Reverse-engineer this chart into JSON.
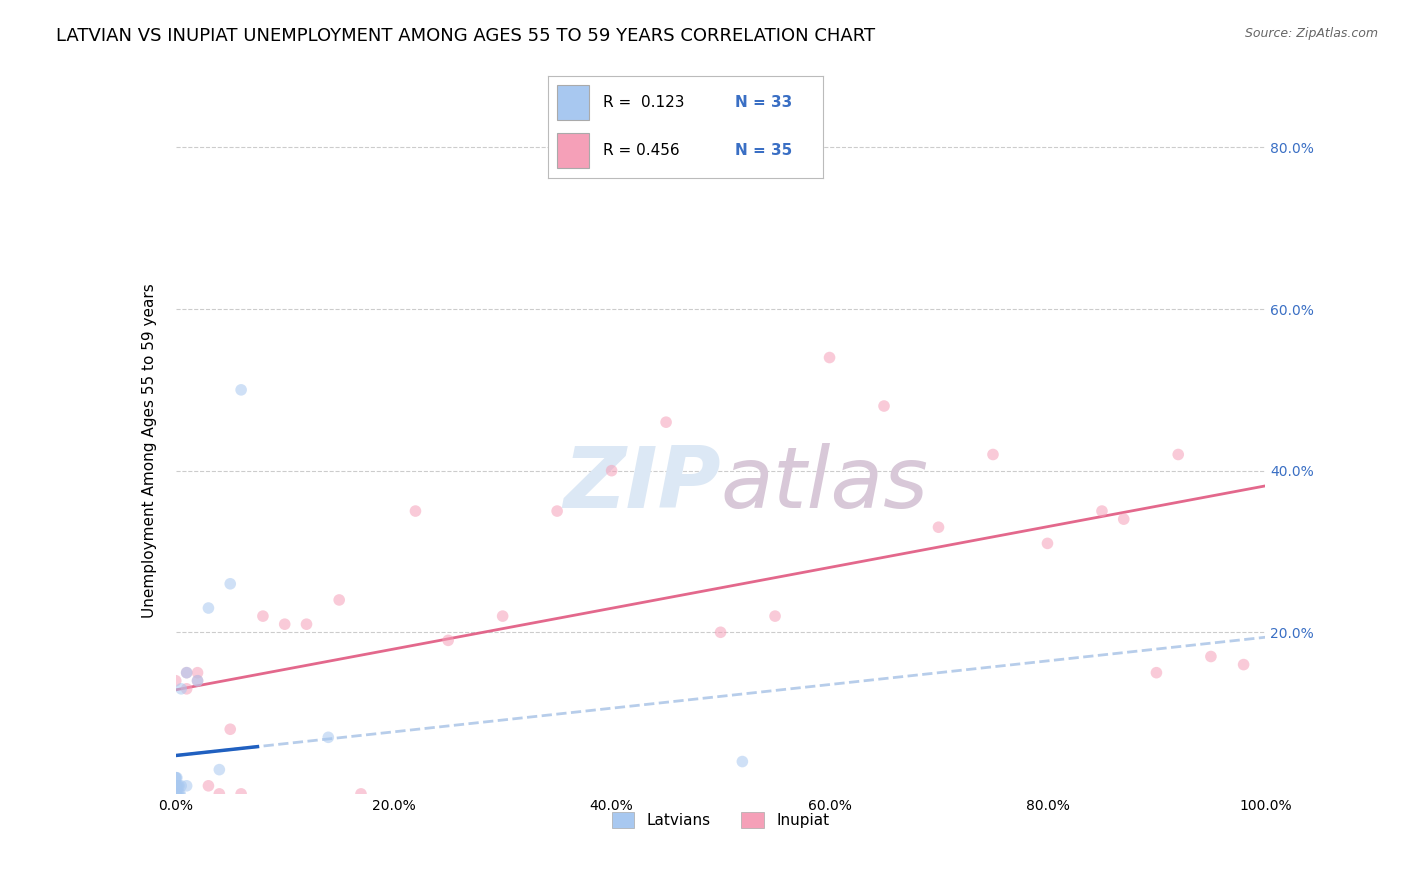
{
  "title": "LATVIAN VS INUPIAT UNEMPLOYMENT AMONG AGES 55 TO 59 YEARS CORRELATION CHART",
  "source": "Source: ZipAtlas.com",
  "ylabel": "Unemployment Among Ages 55 to 59 years",
  "latvian_R": 0.123,
  "latvian_N": 33,
  "inupiat_R": 0.456,
  "inupiat_N": 35,
  "latvian_color": "#a8c8f0",
  "inupiat_color": "#f5a0b8",
  "latvian_line_color": "#2060c0",
  "inupiat_line_color": "#e05880",
  "dashed_line_color": "#b0c8e8",
  "background_color": "#ffffff",
  "grid_color": "#cccccc",
  "latvian_x": [
    0.0,
    0.0,
    0.0,
    0.0,
    0.0,
    0.0,
    0.0,
    0.0,
    0.0,
    0.0,
    0.0,
    0.0,
    0.0,
    0.0,
    0.001,
    0.001,
    0.001,
    0.002,
    0.002,
    0.003,
    0.003,
    0.004,
    0.005,
    0.005,
    0.01,
    0.01,
    0.02,
    0.03,
    0.04,
    0.05,
    0.06,
    0.14,
    0.52
  ],
  "latvian_y": [
    0.0,
    0.0,
    0.0,
    0.0,
    0.0,
    0.0,
    0.0,
    0.0,
    0.01,
    0.01,
    0.01,
    0.01,
    0.02,
    0.02,
    0.0,
    0.01,
    0.02,
    0.0,
    0.01,
    0.0,
    0.01,
    0.0,
    0.01,
    0.13,
    0.15,
    0.01,
    0.14,
    0.23,
    0.03,
    0.26,
    0.5,
    0.07,
    0.04
  ],
  "inupiat_x": [
    0.0,
    0.0,
    0.0,
    0.01,
    0.01,
    0.02,
    0.02,
    0.03,
    0.04,
    0.05,
    0.06,
    0.08,
    0.1,
    0.12,
    0.15,
    0.17,
    0.22,
    0.25,
    0.3,
    0.35,
    0.4,
    0.45,
    0.5,
    0.55,
    0.6,
    0.65,
    0.7,
    0.75,
    0.8,
    0.85,
    0.87,
    0.9,
    0.92,
    0.95,
    0.98
  ],
  "inupiat_y": [
    0.0,
    0.01,
    0.14,
    0.13,
    0.15,
    0.15,
    0.14,
    0.01,
    0.0,
    0.08,
    0.0,
    0.22,
    0.21,
    0.21,
    0.24,
    0.0,
    0.35,
    0.19,
    0.22,
    0.35,
    0.4,
    0.46,
    0.2,
    0.22,
    0.54,
    0.48,
    0.33,
    0.42,
    0.31,
    0.35,
    0.34,
    0.15,
    0.42,
    0.17,
    0.16
  ],
  "xlim": [
    0.0,
    1.0
  ],
  "ylim": [
    0.0,
    0.85
  ],
  "xtick_vals": [
    0.0,
    0.2,
    0.4,
    0.6,
    0.8,
    1.0
  ],
  "xtick_labels": [
    "0.0%",
    "20.0%",
    "40.0%",
    "60.0%",
    "80.0%",
    "100.0%"
  ],
  "right_ytick_vals": [
    0.2,
    0.4,
    0.6,
    0.8
  ],
  "right_ytick_labels": [
    "20.0%",
    "40.0%",
    "60.0%",
    "80.0%"
  ],
  "marker_size": 70,
  "marker_alpha": 0.55,
  "title_fontsize": 13,
  "label_fontsize": 11,
  "tick_fontsize": 10,
  "right_tick_color": "#3a6fc4",
  "watermark_color": "#dce8f5",
  "watermark_color2": "#d8c8d8"
}
